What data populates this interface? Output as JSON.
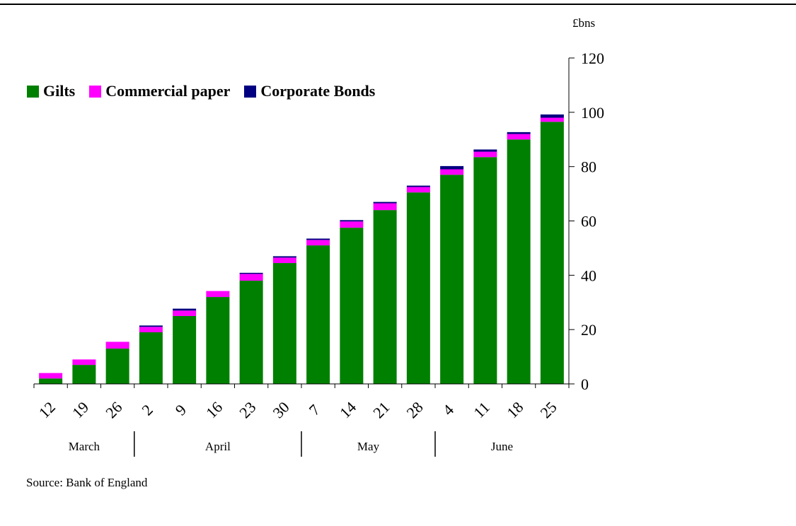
{
  "chart_data": {
    "type": "bar",
    "stacked": true,
    "unit_label": "£bns",
    "categories": [
      "12",
      "19",
      "26",
      "2",
      "9",
      "16",
      "23",
      "30",
      "7",
      "14",
      "21",
      "28",
      "4",
      "11",
      "18",
      "25"
    ],
    "months": [
      {
        "name": "March",
        "start": 0,
        "end": 2
      },
      {
        "name": "April",
        "start": 3,
        "end": 7
      },
      {
        "name": "May",
        "start": 8,
        "end": 11
      },
      {
        "name": "June",
        "start": 12,
        "end": 15
      }
    ],
    "series": [
      {
        "name": "Gilts",
        "color": "#008000",
        "values": [
          2,
          7,
          13,
          19,
          25,
          32,
          38,
          44.5,
          51,
          57.5,
          64,
          70.5,
          77,
          83.5,
          90,
          96.5
        ]
      },
      {
        "name": "Commercial paper",
        "color": "#ff00ff",
        "values": [
          2,
          2,
          2.5,
          2,
          2,
          2.2,
          2.5,
          2,
          2,
          2.3,
          2.5,
          2,
          2,
          2,
          2,
          1.5
        ]
      },
      {
        "name": "Corporate Bonds",
        "color": "#000080",
        "values": [
          0,
          0,
          0,
          0.5,
          0.7,
          0,
          0.4,
          0.5,
          0.5,
          0.5,
          0.5,
          0.5,
          1.2,
          0.8,
          0.7,
          1.2
        ]
      }
    ],
    "ylim": [
      0,
      120
    ],
    "yticks": [
      0,
      20,
      40,
      60,
      80,
      100,
      120
    ],
    "y_axis_position": "right",
    "legend_position": "top-left",
    "grid": false,
    "source": "Source:  Bank of England"
  }
}
